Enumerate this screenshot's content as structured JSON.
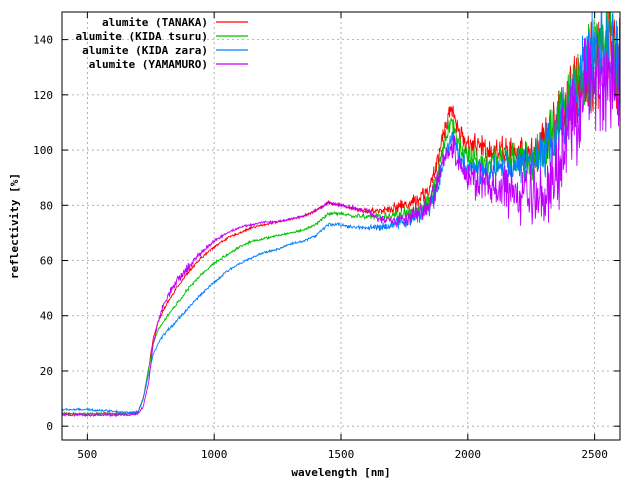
{
  "chart_data": {
    "type": "line",
    "title": "",
    "xlabel": "wavelength [nm]",
    "ylabel": "reflectivity [%]",
    "xlim": [
      400,
      2600
    ],
    "ylim": [
      -5,
      150
    ],
    "xticks": [
      500,
      1000,
      1500,
      2000,
      2500
    ],
    "yticks": [
      0,
      20,
      40,
      60,
      80,
      100,
      120,
      140
    ],
    "xtick_labels": [
      "500",
      "1000",
      "1500",
      "2000",
      "2500"
    ],
    "ytick_labels": [
      "0",
      "20",
      "40",
      "60",
      "80",
      "100",
      "120",
      "140"
    ],
    "grid": true,
    "legend_position": "top-left",
    "series": [
      {
        "name": "alumite (TANAKA)",
        "color": "#ff0000",
        "x": [
          400,
          500,
          600,
          650,
          700,
          720,
          740,
          760,
          780,
          800,
          850,
          900,
          950,
          1000,
          1050,
          1100,
          1150,
          1200,
          1250,
          1300,
          1350,
          1400,
          1450,
          1500,
          1550,
          1600,
          1650,
          1700,
          1750,
          1800,
          1850,
          1880,
          1900,
          1920,
          1940,
          1960,
          1980,
          2000,
          2050,
          2100,
          2150,
          2200,
          2250,
          2300,
          2350,
          2400,
          2450,
          2500,
          2550,
          2600
        ],
        "y": [
          4.5,
          4.5,
          4.5,
          4.5,
          5,
          10,
          20,
          32,
          38,
          42,
          50,
          56,
          61,
          65,
          68,
          70,
          72,
          73,
          74,
          75,
          76,
          78,
          81,
          80,
          79,
          78,
          78,
          79,
          80,
          82,
          86,
          95,
          105,
          112,
          115,
          108,
          104,
          102,
          101,
          100,
          100,
          98,
          98,
          103,
          110,
          118,
          125,
          132,
          138,
          132
        ],
        "noise": [
          0.3,
          0.3,
          0.3,
          0.3,
          0.3,
          0.3,
          0.3,
          0.3,
          0.3,
          0.4,
          0.5,
          0.5,
          0.4,
          0.4,
          0.4,
          0.3,
          0.3,
          0.3,
          0.3,
          0.3,
          0.3,
          0.4,
          0.5,
          0.5,
          0.6,
          0.8,
          1,
          1.5,
          2,
          2.2,
          2.5,
          3,
          3,
          3,
          3,
          3,
          3.5,
          3.5,
          4,
          4,
          4,
          5,
          6,
          7,
          8,
          10,
          12,
          14,
          15,
          15
        ]
      },
      {
        "name": "alumite (KIDA tsuru)",
        "color": "#00c000",
        "x": [
          400,
          500,
          600,
          650,
          700,
          720,
          740,
          760,
          780,
          800,
          850,
          900,
          950,
          1000,
          1050,
          1100,
          1150,
          1200,
          1250,
          1300,
          1350,
          1400,
          1450,
          1500,
          1550,
          1600,
          1650,
          1700,
          1750,
          1800,
          1850,
          1880,
          1900,
          1920,
          1940,
          1960,
          1980,
          2000,
          2050,
          2100,
          2150,
          2200,
          2250,
          2300,
          2350,
          2400,
          2450,
          2500,
          2550,
          2600
        ],
        "y": [
          4.5,
          4.5,
          4.5,
          4.5,
          5,
          10,
          20,
          30,
          35,
          38,
          44,
          50,
          55,
          59,
          62,
          65,
          67,
          68,
          69,
          70,
          71,
          73,
          77,
          77,
          76,
          76,
          76,
          76,
          77,
          78,
          81,
          90,
          100,
          108,
          110,
          103,
          100,
          98,
          95,
          96,
          97,
          96,
          96,
          100,
          108,
          118,
          128,
          135,
          140,
          130
        ],
        "noise": [
          0.3,
          0.3,
          0.3,
          0.3,
          0.3,
          0.3,
          0.3,
          0.3,
          0.3,
          0.4,
          0.5,
          0.5,
          0.4,
          0.4,
          0.4,
          0.3,
          0.3,
          0.3,
          0.3,
          0.3,
          0.3,
          0.4,
          0.5,
          0.5,
          0.6,
          0.8,
          1,
          1.5,
          2,
          2.2,
          2.5,
          3,
          3,
          3,
          3,
          3,
          3.5,
          3.5,
          4,
          4,
          4,
          5,
          6,
          7,
          8,
          10,
          12,
          14,
          15,
          15
        ]
      },
      {
        "name": "alumite (KIDA zara)",
        "color": "#0080ff",
        "x": [
          400,
          500,
          600,
          650,
          700,
          720,
          740,
          760,
          780,
          800,
          850,
          900,
          950,
          1000,
          1050,
          1100,
          1150,
          1200,
          1250,
          1300,
          1350,
          1400,
          1450,
          1500,
          1550,
          1600,
          1650,
          1700,
          1750,
          1800,
          1850,
          1880,
          1900,
          1920,
          1940,
          1960,
          1980,
          2000,
          2050,
          2100,
          2150,
          2200,
          2250,
          2300,
          2350,
          2400,
          2450,
          2500,
          2550,
          2600
        ],
        "y": [
          6,
          6,
          5.5,
          5,
          5,
          10,
          18,
          26,
          30,
          33,
          38,
          43,
          48,
          52,
          56,
          59,
          61,
          63,
          64,
          66,
          67,
          69,
          73,
          73,
          72,
          72,
          72,
          73,
          74,
          76,
          79,
          86,
          95,
          102,
          105,
          99,
          96,
          94,
          92,
          93,
          95,
          94,
          95,
          99,
          106,
          116,
          125,
          132,
          136,
          128
        ],
        "noise": [
          0.3,
          0.3,
          0.3,
          0.3,
          0.3,
          0.3,
          0.3,
          0.3,
          0.3,
          0.4,
          0.5,
          0.5,
          0.4,
          0.4,
          0.4,
          0.3,
          0.3,
          0.3,
          0.3,
          0.3,
          0.3,
          0.4,
          0.5,
          0.5,
          0.6,
          0.8,
          1,
          1.5,
          2,
          2.2,
          2.5,
          3,
          3,
          3,
          3,
          3,
          3.5,
          3.5,
          4,
          4,
          4,
          5,
          6,
          7,
          8,
          10,
          12,
          14,
          15,
          15
        ]
      },
      {
        "name": "alumite (YAMAMURO)",
        "color": "#c000ff",
        "x": [
          400,
          500,
          600,
          650,
          700,
          720,
          740,
          760,
          780,
          800,
          850,
          900,
          950,
          1000,
          1050,
          1100,
          1150,
          1200,
          1250,
          1300,
          1350,
          1400,
          1450,
          1500,
          1550,
          1600,
          1650,
          1700,
          1750,
          1800,
          1850,
          1880,
          1900,
          1920,
          1940,
          1960,
          1980,
          2000,
          2050,
          2100,
          2150,
          2200,
          2250,
          2300,
          2350,
          2400,
          2450,
          2500,
          2550,
          2600
        ],
        "y": [
          4,
          4,
          4,
          4,
          4.5,
          7,
          15,
          30,
          38,
          44,
          52,
          58,
          63,
          67,
          70,
          72,
          73,
          74,
          74,
          75,
          76,
          78,
          81,
          80,
          79,
          78,
          75,
          74,
          75,
          77,
          80,
          88,
          95,
          100,
          102,
          97,
          93,
          90,
          88,
          86,
          85,
          84,
          82,
          84,
          92,
          105,
          118,
          125,
          128,
          122
        ],
        "noise": [
          0.3,
          0.3,
          0.3,
          0.3,
          0.3,
          0.3,
          0.3,
          0.3,
          0.5,
          1,
          1.5,
          1.5,
          0.8,
          0.5,
          0.4,
          0.3,
          0.3,
          0.3,
          0.3,
          0.3,
          0.3,
          0.4,
          0.5,
          0.5,
          0.6,
          0.8,
          1,
          1.5,
          2,
          2.5,
          3,
          3.5,
          3.5,
          3.5,
          4,
          4,
          4.5,
          5,
          6,
          6,
          7,
          8,
          9,
          10,
          12,
          14,
          16,
          17,
          18,
          18
        ]
      }
    ]
  }
}
